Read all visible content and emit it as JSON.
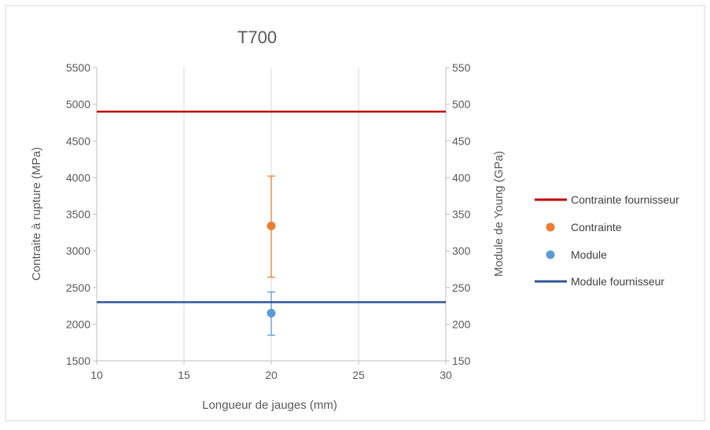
{
  "colors": {
    "contrainte_fournisseur": "#C00000",
    "contrainte": "#ED7D31",
    "module": "#5B9BD5",
    "module_fournisseur": "#2F5597",
    "axis": "#BFBFBF",
    "grid": "#D9D9D9",
    "text": "#595959"
  },
  "chart_data": {
    "type": "scatter",
    "title": "T700",
    "xlabel": "Longueur de jauges (mm)",
    "ylabel": "Contraite à rupture (MPa)",
    "y2label": "Module de Young (GPa)",
    "xlim": [
      10,
      30
    ],
    "ylim": [
      1500,
      5500
    ],
    "y2lim": [
      150,
      550
    ],
    "x_ticks": [
      "10",
      "15",
      "20",
      "25",
      "30"
    ],
    "y_ticks": [
      "1500",
      "2000",
      "2500",
      "3000",
      "3500",
      "4000",
      "4500",
      "5000",
      "5500"
    ],
    "y2_ticks": [
      "150",
      "200",
      "250",
      "300",
      "350",
      "400",
      "450",
      "500",
      "550"
    ],
    "grid": "vertical",
    "legend_position": "right",
    "series": [
      {
        "name": "Contrainte fournisseur",
        "kind": "hline",
        "axis": "left",
        "y": 4900,
        "color": "#C00000"
      },
      {
        "name": "Contrainte",
        "kind": "point",
        "axis": "left",
        "x": 20,
        "y": 3340,
        "error_low": 2640,
        "error_high": 4020,
        "color": "#ED7D31"
      },
      {
        "name": "Module",
        "kind": "point",
        "axis": "right",
        "x": 20,
        "y": 215,
        "error_low": 185,
        "error_high": 244,
        "color": "#5B9BD5"
      },
      {
        "name": "Module fournisseur",
        "kind": "hline",
        "axis": "right",
        "y": 230,
        "color": "#2F5597"
      }
    ]
  }
}
